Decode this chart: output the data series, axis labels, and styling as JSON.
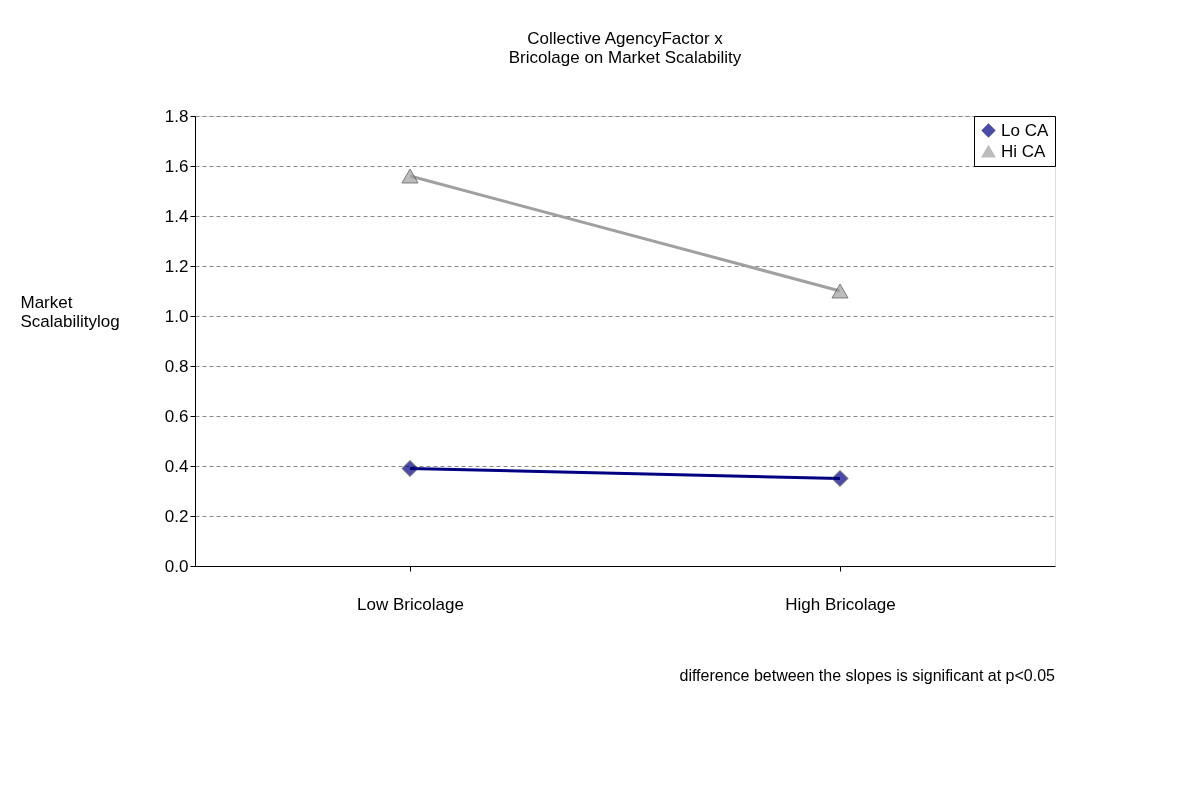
{
  "chart_data": {
    "type": "line",
    "title": [
      "Collective AgencyFactor x",
      "Bricolage on Market Scalability"
    ],
    "ylabel": [
      "Market",
      "Scalabilitylog"
    ],
    "categories": [
      "Low Bricolage",
      "High Bricolage"
    ],
    "series": [
      {
        "name": "Lo CA",
        "color": "#000080",
        "values": [
          0.39,
          0.35
        ],
        "marker": "diamond"
      },
      {
        "name": "Hi CA",
        "color": "#a0a0a0",
        "values": [
          1.56,
          1.1
        ],
        "marker": "triangle"
      }
    ],
    "ylim": [
      0,
      1.8
    ],
    "yticks": [
      {
        "value": 0,
        "label": "0.0"
      },
      0.2,
      0.4,
      0.6,
      0.8,
      {
        "value": 1,
        "label": "1.0"
      },
      1.2,
      1.4,
      1.6,
      1.8
    ],
    "grid": "y",
    "legend": "top right",
    "annotations": [
      "difference between the slopes is significant at p<0.05"
    ]
  }
}
